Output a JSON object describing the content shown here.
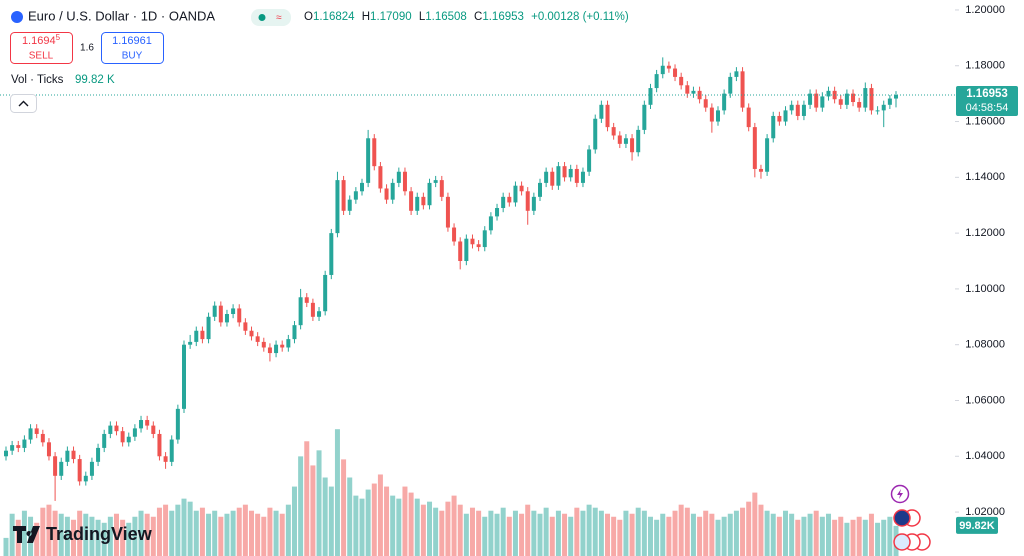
{
  "header": {
    "symbol": "Euro / U.S. Dollar · 1D · OANDA",
    "ohlc_labels": [
      "O",
      "H",
      "L",
      "C"
    ],
    "ohlc": [
      "1.16824",
      "1.17090",
      "1.16508",
      "1.16953"
    ],
    "change": "+0.00128 (+0.11%)"
  },
  "trade": {
    "sell_price": "1.1694",
    "sell_price_sup": "5",
    "sell": "SELL",
    "spread": "1.6",
    "buy_price": "1.16961",
    "buy": "BUY"
  },
  "volume_legend": {
    "label": "Vol · Ticks"
  },
  "logo": "TradingView",
  "chart_data": {
    "type": "candlestick",
    "open": [
      1.04,
      1.042,
      1.044,
      1.043,
      1.046,
      1.05,
      1.048,
      1.045,
      1.04,
      1.033,
      1.038,
      1.042,
      1.039,
      1.031,
      1.033,
      1.038,
      1.043,
      1.048,
      1.051,
      1.049,
      1.045,
      1.047,
      1.05,
      1.053,
      1.051,
      1.048,
      1.04,
      1.038,
      1.046,
      1.057,
      1.08,
      1.081,
      1.085,
      1.082,
      1.09,
      1.094,
      1.088,
      1.091,
      1.093,
      1.088,
      1.085,
      1.083,
      1.081,
      1.079,
      1.077,
      1.08,
      1.079,
      1.082,
      1.087,
      1.097,
      1.095,
      1.09,
      1.092,
      1.105,
      1.12,
      1.139,
      1.128,
      1.132,
      1.135,
      1.138,
      1.154,
      1.144,
      1.136,
      1.132,
      1.138,
      1.142,
      1.135,
      1.128,
      1.133,
      1.13,
      1.138,
      1.139,
      1.133,
      1.122,
      1.117,
      1.11,
      1.118,
      1.116,
      1.115,
      1.121,
      1.126,
      1.129,
      1.133,
      1.131,
      1.137,
      1.135,
      1.128,
      1.133,
      1.138,
      1.142,
      1.137,
      1.144,
      1.14,
      1.143,
      1.138,
      1.142,
      1.15,
      1.161,
      1.166,
      1.158,
      1.155,
      1.152,
      1.154,
      1.149,
      1.157,
      1.166,
      1.172,
      1.177,
      1.18,
      1.179,
      1.176,
      1.173,
      1.17,
      1.171,
      1.168,
      1.165,
      1.16,
      1.164,
      1.17,
      1.176,
      1.178,
      1.165,
      1.158,
      1.143,
      1.142,
      1.154,
      1.162,
      1.16,
      1.164,
      1.166,
      1.162,
      1.166,
      1.17,
      1.165,
      1.169,
      1.171,
      1.168,
      1.166,
      1.17,
      1.167,
      1.165,
      1.172,
      1.164,
      1.164,
      1.166,
      1.16824
    ],
    "high": [
      1.0435,
      1.0455,
      1.0455,
      1.0475,
      1.0515,
      1.0515,
      1.0495,
      1.0465,
      1.0415,
      1.0395,
      1.0435,
      1.0435,
      1.0405,
      1.0345,
      1.0395,
      1.0445,
      1.0495,
      1.0525,
      1.0525,
      1.0505,
      1.0485,
      1.0515,
      1.0545,
      1.0545,
      1.0525,
      1.0495,
      1.0415,
      1.0475,
      1.0585,
      1.0815,
      1.0835,
      1.0865,
      1.0865,
      1.0915,
      1.0955,
      1.0955,
      1.0925,
      1.0945,
      1.0945,
      1.0895,
      1.0865,
      1.0845,
      1.0825,
      1.0805,
      1.0815,
      1.0815,
      1.0835,
      1.0885,
      1.1,
      1.0985,
      1.0965,
      1.0935,
      1.1065,
      1.1215,
      1.142,
      1.1405,
      1.1335,
      1.1365,
      1.1395,
      1.157,
      1.1555,
      1.1455,
      1.1375,
      1.1395,
      1.1435,
      1.1435,
      1.1365,
      1.1345,
      1.1345,
      1.1395,
      1.1405,
      1.1405,
      1.1345,
      1.1235,
      1.1185,
      1.1195,
      1.1195,
      1.1175,
      1.1225,
      1.1275,
      1.1305,
      1.1345,
      1.1345,
      1.1385,
      1.1385,
      1.1365,
      1.1345,
      1.1395,
      1.1435,
      1.1435,
      1.1455,
      1.1455,
      1.1445,
      1.1445,
      1.1435,
      1.1515,
      1.1625,
      1.1675,
      1.1675,
      1.1595,
      1.1565,
      1.1555,
      1.1555,
      1.1585,
      1.1675,
      1.1735,
      1.1785,
      1.183,
      1.1815,
      1.1805,
      1.1775,
      1.1745,
      1.1725,
      1.1725,
      1.1695,
      1.1665,
      1.1655,
      1.1715,
      1.1775,
      1.1795,
      1.1795,
      1.1665,
      1.1595,
      1.1445,
      1.1555,
      1.1635,
      1.1635,
      1.1655,
      1.1675,
      1.1675,
      1.1675,
      1.1715,
      1.1715,
      1.1705,
      1.1725,
      1.1725,
      1.1695,
      1.1715,
      1.1715,
      1.1685,
      1.174,
      1.1735,
      1.1655,
      1.1675,
      1.1695,
      1.1709
    ],
    "low": [
      1.0385,
      1.0405,
      1.0415,
      1.0415,
      1.0445,
      1.0465,
      1.0435,
      1.0385,
      1.024,
      1.0315,
      1.0365,
      1.0375,
      1.0295,
      1.0295,
      1.0315,
      1.0365,
      1.0415,
      1.0465,
      1.0475,
      1.0435,
      1.0435,
      1.0455,
      1.0485,
      1.0495,
      1.0465,
      1.0385,
      1.0355,
      1.0365,
      1.0445,
      1.0555,
      1.0785,
      1.0795,
      1.0805,
      1.0805,
      1.0885,
      1.0865,
      1.0865,
      1.0895,
      1.0865,
      1.0835,
      1.0815,
      1.0795,
      1.0775,
      1.074,
      1.0755,
      1.0775,
      1.0775,
      1.0805,
      1.0855,
      1.0935,
      1.0885,
      1.0885,
      1.0905,
      1.1035,
      1.1185,
      1.1265,
      1.1265,
      1.1305,
      1.1335,
      1.1365,
      1.1425,
      1.1345,
      1.1305,
      1.1305,
      1.1365,
      1.1335,
      1.1265,
      1.1265,
      1.1285,
      1.1285,
      1.1365,
      1.1315,
      1.1205,
      1.1155,
      1.107,
      1.1085,
      1.1145,
      1.1135,
      1.1135,
      1.1195,
      1.1245,
      1.1275,
      1.1295,
      1.1295,
      1.1335,
      1.123,
      1.1265,
      1.1315,
      1.1365,
      1.1355,
      1.1355,
      1.1385,
      1.1385,
      1.1365,
      1.1365,
      1.1405,
      1.1485,
      1.1595,
      1.1565,
      1.1535,
      1.1505,
      1.1505,
      1.146,
      1.1475,
      1.1555,
      1.1645,
      1.1705,
      1.1755,
      1.1775,
      1.1745,
      1.1715,
      1.1685,
      1.1685,
      1.1665,
      1.1635,
      1.156,
      1.1585,
      1.1625,
      1.1685,
      1.1745,
      1.1635,
      1.1565,
      1.14,
      1.1395,
      1.1405,
      1.1525,
      1.1585,
      1.1585,
      1.1625,
      1.1605,
      1.1605,
      1.1645,
      1.1635,
      1.1635,
      1.1675,
      1.1665,
      1.1645,
      1.1645,
      1.1655,
      1.1635,
      1.1635,
      1.1625,
      1.1625,
      1.158,
      1.1645,
      1.16508
    ],
    "close": [
      1.042,
      1.044,
      1.043,
      1.046,
      1.05,
      1.048,
      1.045,
      1.04,
      1.033,
      1.038,
      1.042,
      1.039,
      1.031,
      1.033,
      1.038,
      1.043,
      1.048,
      1.051,
      1.049,
      1.045,
      1.047,
      1.05,
      1.053,
      1.051,
      1.048,
      1.04,
      1.038,
      1.046,
      1.057,
      1.08,
      1.081,
      1.085,
      1.082,
      1.09,
      1.094,
      1.088,
      1.091,
      1.093,
      1.088,
      1.085,
      1.083,
      1.081,
      1.079,
      1.077,
      1.08,
      1.079,
      1.082,
      1.087,
      1.097,
      1.095,
      1.09,
      1.092,
      1.105,
      1.12,
      1.139,
      1.128,
      1.132,
      1.135,
      1.138,
      1.154,
      1.144,
      1.136,
      1.132,
      1.138,
      1.142,
      1.135,
      1.128,
      1.133,
      1.13,
      1.138,
      1.139,
      1.133,
      1.122,
      1.117,
      1.11,
      1.118,
      1.116,
      1.115,
      1.121,
      1.126,
      1.129,
      1.133,
      1.131,
      1.137,
      1.135,
      1.128,
      1.133,
      1.138,
      1.142,
      1.137,
      1.144,
      1.14,
      1.143,
      1.138,
      1.142,
      1.15,
      1.161,
      1.166,
      1.158,
      1.155,
      1.152,
      1.154,
      1.149,
      1.157,
      1.166,
      1.172,
      1.177,
      1.18,
      1.179,
      1.176,
      1.173,
      1.17,
      1.171,
      1.168,
      1.165,
      1.16,
      1.164,
      1.17,
      1.176,
      1.178,
      1.165,
      1.158,
      1.143,
      1.142,
      1.154,
      1.162,
      1.16,
      1.164,
      1.166,
      1.162,
      1.166,
      1.17,
      1.165,
      1.169,
      1.171,
      1.168,
      1.166,
      1.17,
      1.167,
      1.165,
      1.172,
      1.164,
      1.164,
      1.166,
      1.16824,
      1.16953
    ],
    "volume": [
      60,
      140,
      120,
      150,
      130,
      110,
      160,
      170,
      150,
      140,
      130,
      120,
      150,
      140,
      130,
      120,
      110,
      130,
      140,
      120,
      110,
      130,
      150,
      140,
      130,
      160,
      170,
      150,
      170,
      190,
      180,
      150,
      160,
      140,
      150,
      130,
      140,
      150,
      160,
      170,
      150,
      140,
      130,
      160,
      150,
      140,
      170,
      230,
      330,
      380,
      300,
      350,
      260,
      230,
      420,
      320,
      260,
      200,
      190,
      220,
      240,
      270,
      230,
      200,
      190,
      230,
      210,
      190,
      170,
      180,
      160,
      150,
      180,
      200,
      170,
      140,
      160,
      150,
      130,
      150,
      140,
      160,
      130,
      150,
      140,
      170,
      150,
      140,
      160,
      130,
      150,
      140,
      130,
      160,
      150,
      170,
      160,
      150,
      140,
      130,
      120,
      150,
      140,
      160,
      150,
      130,
      120,
      140,
      130,
      150,
      170,
      160,
      140,
      130,
      150,
      140,
      120,
      130,
      140,
      150,
      160,
      180,
      210,
      170,
      150,
      140,
      130,
      150,
      140,
      120,
      130,
      140,
      150,
      130,
      140,
      120,
      130,
      110,
      120,
      130,
      120,
      140,
      110,
      120,
      130,
      99.82
    ],
    "volume_label": "99.82 K",
    "volume_axis_label": "99.82K",
    "countdown": "04:58:54",
    "ylim": [
      1.00425,
      1.20357
    ],
    "yticks": [
      {
        "value": 1.02,
        "label": "1.02000"
      },
      {
        "value": 1.04,
        "label": "1.04000"
      },
      {
        "value": 1.06,
        "label": "1.06000"
      },
      {
        "value": 1.08,
        "label": "1.08000"
      },
      {
        "value": 1.1,
        "label": "1.10000"
      },
      {
        "value": 1.12,
        "label": "1.12000"
      },
      {
        "value": 1.14,
        "label": "1.14000"
      },
      {
        "value": 1.16,
        "label": "1.16000"
      },
      {
        "value": 1.18,
        "label": "1.18000"
      },
      {
        "value": 1.2,
        "label": "1.20000"
      }
    ],
    "y2lim": [
      0,
      530
    ],
    "up_color": "#26a69a",
    "down_color": "#ef5350",
    "grid": false
  }
}
